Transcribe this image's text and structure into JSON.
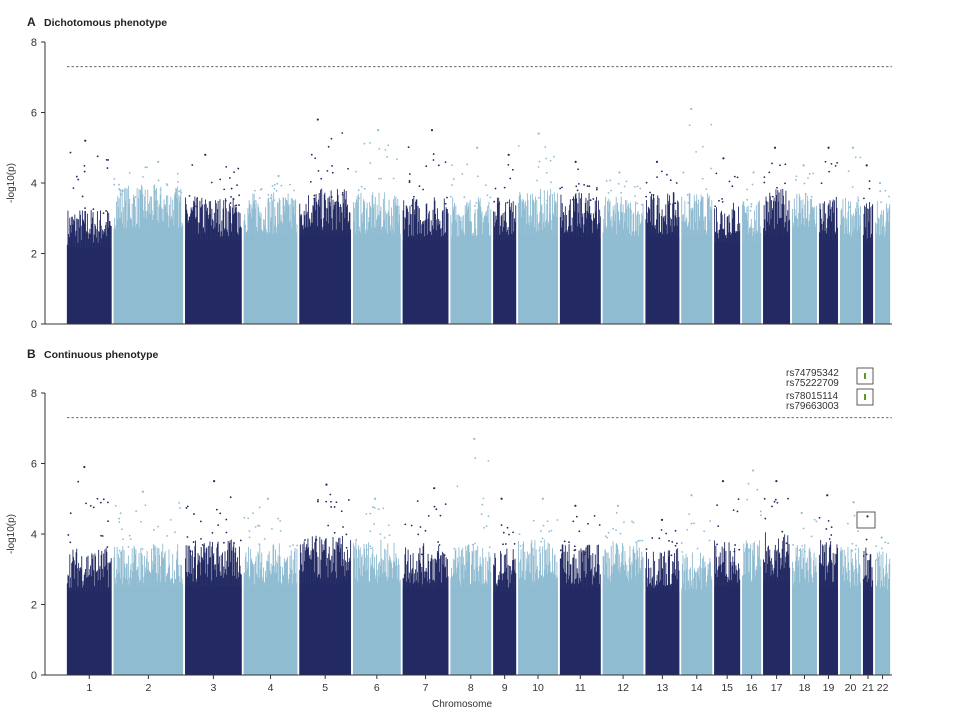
{
  "colors": {
    "dark": "#232a63",
    "light": "#90bcd2",
    "threshold": "#555555",
    "axis": "#333333",
    "annotation_marker": "#5a9a2a"
  },
  "x_axis": {
    "label": "Chromosome"
  },
  "chromosomes": [
    "1",
    "2",
    "3",
    "4",
    "5",
    "6",
    "7",
    "8",
    "9",
    "10",
    "11",
    "12",
    "13",
    "14",
    "15",
    "16",
    "17",
    "18",
    "19",
    "20",
    "21",
    "22"
  ],
  "chart_data": [
    {
      "type": "scatter",
      "letter": "A",
      "title": "Dichotomous phenotype",
      "ylabel": "-log10(p)",
      "ylim": [
        0,
        8
      ],
      "yticks": [
        "0",
        "2",
        "4",
        "6",
        "8"
      ],
      "significance_threshold": 7.3,
      "chromosome_peaks": [
        {
          "chr": "1",
          "typical": 3.0,
          "max": 5.2
        },
        {
          "chr": "2",
          "typical": 3.6,
          "max": 4.6
        },
        {
          "chr": "3",
          "typical": 3.3,
          "max": 4.8
        },
        {
          "chr": "4",
          "typical": 3.4,
          "max": 4.2
        },
        {
          "chr": "5",
          "typical": 3.5,
          "max": 5.8
        },
        {
          "chr": "6",
          "typical": 3.4,
          "max": 5.5
        },
        {
          "chr": "7",
          "typical": 3.3,
          "max": 5.5
        },
        {
          "chr": "8",
          "typical": 3.3,
          "max": 5.0
        },
        {
          "chr": "9",
          "typical": 3.3,
          "max": 4.8
        },
        {
          "chr": "10",
          "typical": 3.5,
          "max": 5.4
        },
        {
          "chr": "11",
          "typical": 3.4,
          "max": 4.6
        },
        {
          "chr": "12",
          "typical": 3.3,
          "max": 4.3
        },
        {
          "chr": "13",
          "typical": 3.4,
          "max": 4.6
        },
        {
          "chr": "14",
          "typical": 3.4,
          "max": 6.1
        },
        {
          "chr": "15",
          "typical": 3.2,
          "max": 4.7
        },
        {
          "chr": "16",
          "typical": 3.2,
          "max": 4.3
        },
        {
          "chr": "17",
          "typical": 3.5,
          "max": 5.0
        },
        {
          "chr": "18",
          "typical": 3.4,
          "max": 4.5
        },
        {
          "chr": "19",
          "typical": 3.3,
          "max": 5.0
        },
        {
          "chr": "20",
          "typical": 3.3,
          "max": 5.0
        },
        {
          "chr": "21",
          "typical": 3.2,
          "max": 4.5
        },
        {
          "chr": "22",
          "typical": 3.2,
          "max": 4.0
        }
      ]
    },
    {
      "type": "scatter",
      "letter": "B",
      "title": "Continuous phenotype",
      "ylabel": "-log10(p)",
      "ylim": [
        0,
        8
      ],
      "yticks": [
        "0",
        "2",
        "4",
        "6",
        "8"
      ],
      "significance_threshold": 7.3,
      "chromosome_peaks": [
        {
          "chr": "1",
          "typical": 3.3,
          "max": 5.9
        },
        {
          "chr": "2",
          "typical": 3.4,
          "max": 5.2
        },
        {
          "chr": "3",
          "typical": 3.5,
          "max": 5.5
        },
        {
          "chr": "4",
          "typical": 3.4,
          "max": 5.0
        },
        {
          "chr": "5",
          "typical": 3.6,
          "max": 5.4
        },
        {
          "chr": "6",
          "typical": 3.5,
          "max": 5.0
        },
        {
          "chr": "7",
          "typical": 3.4,
          "max": 5.3
        },
        {
          "chr": "8",
          "typical": 3.4,
          "max": 6.7
        },
        {
          "chr": "9",
          "typical": 3.3,
          "max": 5.0
        },
        {
          "chr": "10",
          "typical": 3.5,
          "max": 5.0
        },
        {
          "chr": "11",
          "typical": 3.4,
          "max": 4.8
        },
        {
          "chr": "12",
          "typical": 3.5,
          "max": 4.8
        },
        {
          "chr": "13",
          "typical": 3.3,
          "max": 4.4
        },
        {
          "chr": "14",
          "typical": 3.2,
          "max": 5.1
        },
        {
          "chr": "15",
          "typical": 3.5,
          "max": 5.5
        },
        {
          "chr": "16",
          "typical": 3.5,
          "max": 5.8
        },
        {
          "chr": "17",
          "typical": 3.7,
          "max": 5.5
        },
        {
          "chr": "18",
          "typical": 3.4,
          "max": 4.6
        },
        {
          "chr": "19",
          "typical": 3.5,
          "max": 5.1
        },
        {
          "chr": "20",
          "typical": 3.3,
          "max": 4.9
        },
        {
          "chr": "21",
          "typical": 3.3,
          "max": 4.5
        },
        {
          "chr": "22",
          "typical": 3.2,
          "max": 3.9
        }
      ],
      "annotations": [
        {
          "labels": [
            "rs74795342",
            "rs75222709"
          ]
        },
        {
          "labels": [
            "rs78015114",
            "rs79663003"
          ]
        }
      ]
    }
  ]
}
